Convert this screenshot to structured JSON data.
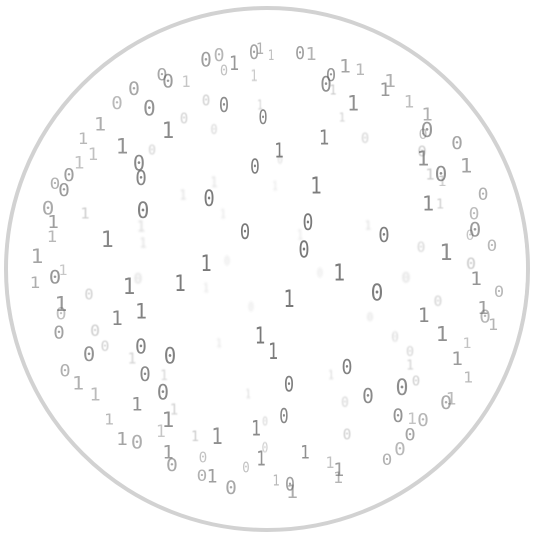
{
  "glyphs": [
    "1",
    "0",
    "1",
    "0",
    "0",
    "1",
    "1",
    "0",
    "1",
    "0",
    "1",
    "1",
    "0",
    "0",
    "1",
    "0",
    "1",
    "0",
    "0",
    "1",
    "1",
    "0",
    "1",
    "0",
    "1",
    "1",
    "0",
    "1",
    "0",
    "0",
    "1",
    "1",
    "0",
    "1",
    "0",
    "1",
    "0",
    "0",
    "1",
    "1",
    "0",
    "1",
    "0",
    "1",
    "0",
    "0",
    "1",
    "1",
    "0",
    "1",
    "0",
    "0",
    "1",
    "0",
    "1",
    "1",
    "0",
    "0",
    "1",
    "0",
    "1",
    "0",
    "1",
    "1",
    "0",
    "0",
    "1",
    "0",
    "1",
    "1",
    "0",
    "1",
    "0",
    "0",
    "1",
    "0",
    "1",
    "1",
    "0",
    "1",
    "0",
    "0",
    "1",
    "1",
    "0",
    "1",
    "0",
    "1",
    "0",
    "1",
    "0",
    "0",
    "1",
    "1",
    "0",
    "1",
    "0",
    "1",
    "1",
    "0",
    "0",
    "1",
    "0",
    "1",
    "1",
    "0",
    "1",
    "0",
    "0",
    "1",
    "0",
    "1",
    "1",
    "0",
    "1",
    "0",
    "0",
    "1",
    "1",
    "0",
    "1",
    "0",
    "1",
    "0",
    "0",
    "1",
    "1",
    "0",
    "1",
    "0",
    "1",
    "0",
    "0",
    "1",
    "0",
    "1",
    "1",
    "0",
    "0",
    "1",
    "1",
    "0",
    "1",
    "0",
    "0",
    "1",
    "0",
    "1",
    "1",
    "0",
    "1",
    "0",
    "0",
    "1",
    "1",
    "0",
    "0",
    "1",
    "0",
    "1",
    "1",
    "0",
    "1",
    "0",
    "0",
    "1",
    "0",
    "1",
    "0",
    "1",
    "1",
    "0",
    "1",
    "0",
    "0",
    "1",
    "1",
    "0",
    "1",
    "0",
    "1",
    "0",
    "0",
    "1",
    "0",
    "1"
  ],
  "colors": {
    "digit": "#666666",
    "ring": "#d2d2d2",
    "background": "#ffffff"
  }
}
